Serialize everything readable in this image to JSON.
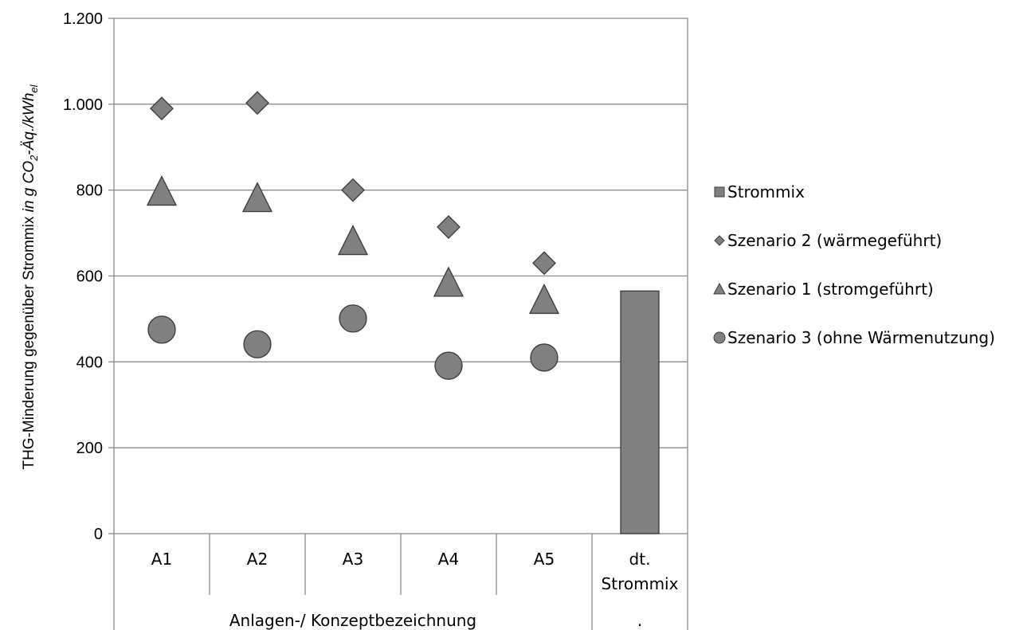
{
  "chart_data": {
    "type": "scatter",
    "title": "",
    "ylabel": {
      "main": "THG-Minderung gegenüber Strommix ",
      "unit_italic": "in g CO",
      "sub1": "2",
      "unit_mid": "-Äq.",
      "unit_tail": "/kWh",
      "sub2": "el"
    },
    "xlabel": "",
    "ylim": [
      0,
      1200
    ],
    "yticks": [
      {
        "value": 0,
        "label": "0"
      },
      {
        "value": 200,
        "label": "200"
      },
      {
        "value": 400,
        "label": "400"
      },
      {
        "value": 600,
        "label": "600"
      },
      {
        "value": 800,
        "label": "800"
      },
      {
        "value": 1000,
        "label": "1.000"
      },
      {
        "value": 1200,
        "label": "1.200"
      }
    ],
    "grid": true,
    "legend_position": "right",
    "categories": [
      "A1",
      "A2",
      "A3",
      "A4",
      "A5",
      "dt. Strommix"
    ],
    "category_labels": [
      [
        "A1"
      ],
      [
        "A2"
      ],
      [
        "A3"
      ],
      [
        "A4"
      ],
      [
        "A5"
      ],
      [
        "dt.",
        "Strommix"
      ]
    ],
    "category_groups": [
      {
        "label": "Anlagen-/ Konzeptbezeichnung",
        "span": 5
      },
      {
        "label": ".",
        "span": 1
      }
    ],
    "series": [
      {
        "name": "Strommix",
        "marker": "bar",
        "color": "#808080",
        "values": [
          null,
          null,
          null,
          null,
          null,
          565
        ]
      },
      {
        "name": "Szenario 2 (wärmegeführt)",
        "marker": "diamond",
        "color": "#808080",
        "values": [
          990,
          1003,
          800,
          714,
          630,
          null
        ]
      },
      {
        "name": "Szenario 1 (stromgeführt)",
        "marker": "triangle",
        "color": "#808080",
        "values": [
          795,
          780,
          680,
          583,
          543,
          null
        ]
      },
      {
        "name": "Szenario 3 (ohne Wärmenutzung)",
        "marker": "circle",
        "color": "#808080",
        "values": [
          475,
          441,
          501,
          391,
          410,
          null
        ]
      }
    ]
  }
}
